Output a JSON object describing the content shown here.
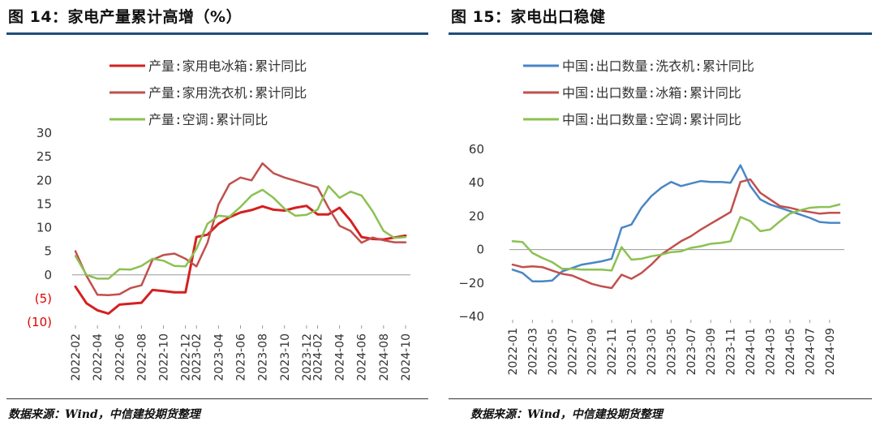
{
  "left": {
    "title": "图 14：家电产量累计高增（%）",
    "source": "数据来源：Wind，中信建投期货整理"
  },
  "right": {
    "title": "图 15：家电出口稳健",
    "source": "数据来源：Wind，中信建投期货整理"
  },
  "colors": {
    "rule": "#1f4e79",
    "dark_red": "#d42020",
    "light_red": "#c0504d",
    "green": "#8cc152",
    "blue": "#4a86c5",
    "negative_tick": "#e00000"
  },
  "chart_data": [
    {
      "type": "line",
      "ylim": [
        -10,
        30
      ],
      "yticks": [
        30,
        25,
        20,
        15,
        10,
        5,
        0,
        -5,
        -10
      ],
      "ytick_labels": [
        "30",
        "25",
        "20",
        "15",
        "10",
        "5",
        "0",
        "(5)",
        "(10)"
      ],
      "xtick_labels": [
        "2022-02",
        "2022-04",
        "2022-06",
        "2022-08",
        "2022-10",
        "2022-12",
        "2023-02",
        "2023-04",
        "2023-06",
        "2023-08",
        "2023-10",
        "2023-12",
        "2024-02",
        "2024-04",
        "2024-06",
        "2024-08",
        "2024-10"
      ],
      "x": [
        "2022-02",
        "2022-03",
        "2022-04",
        "2022-05",
        "2022-06",
        "2022-07",
        "2022-08",
        "2022-09",
        "2022-10",
        "2022-11",
        "2022-12",
        "2023-02",
        "2023-03",
        "2023-04",
        "2023-05",
        "2023-06",
        "2023-07",
        "2023-08",
        "2023-09",
        "2023-10",
        "2023-11",
        "2023-12",
        "2024-02",
        "2024-03",
        "2024-04",
        "2024-05",
        "2024-06",
        "2024-07",
        "2024-08",
        "2024-09",
        "2024-10"
      ],
      "legend_position": "top",
      "series": [
        {
          "name": "产量:家用电冰箱:累计同比",
          "color": "#d42020",
          "width": 3,
          "values": [
            -2.5,
            -6.0,
            -7.5,
            -8.2,
            -6.3,
            -6.1,
            -5.9,
            -3.2,
            -3.4,
            -3.7,
            -3.7,
            8.0,
            8.5,
            10.8,
            12.2,
            13.2,
            13.7,
            14.5,
            13.8,
            13.6,
            14.2,
            14.6,
            12.8,
            12.8,
            14.2,
            11.5,
            8.0,
            7.6,
            7.5,
            7.9,
            8.3
          ]
        },
        {
          "name": "产量:家用洗衣机:累计同比",
          "color": "#c0504d",
          "width": 2.5,
          "values": [
            5.0,
            -0.2,
            -4.2,
            -4.3,
            -4.1,
            -2.8,
            -2.2,
            3.2,
            4.2,
            4.5,
            3.4,
            1.8,
            6.8,
            14.9,
            19.2,
            20.6,
            20.0,
            23.6,
            21.5,
            20.6,
            19.9,
            19.2,
            18.5,
            14.2,
            10.4,
            9.3,
            6.8,
            7.9,
            7.3,
            6.9,
            6.9
          ]
        },
        {
          "name": "产量:空调:累计同比",
          "color": "#8cc152",
          "width": 2.5,
          "values": [
            4.0,
            0.0,
            -0.8,
            -0.8,
            1.2,
            1.1,
            1.9,
            3.4,
            3.0,
            1.9,
            1.8,
            5.5,
            10.8,
            12.5,
            12.3,
            14.4,
            16.8,
            18.0,
            16.3,
            14.0,
            12.5,
            12.7,
            13.8,
            18.8,
            16.3,
            17.6,
            16.8,
            13.5,
            9.3,
            7.8,
            8.0
          ]
        }
      ]
    },
    {
      "type": "line",
      "ylim": [
        -40,
        60
      ],
      "yticks": [
        60,
        40,
        20,
        0,
        -20,
        -40
      ],
      "ytick_labels": [
        "60",
        "40",
        "20",
        "0",
        "−20",
        "−40"
      ],
      "xtick_labels": [
        "2022-01",
        "2022-03",
        "2022-05",
        "2022-07",
        "2022-09",
        "2022-11",
        "2023-01",
        "2023-03",
        "2023-05",
        "2023-07",
        "2023-09",
        "2023-11",
        "2024-01",
        "2024-03",
        "2024-05",
        "2024-07",
        "2024-09"
      ],
      "x": [
        "2022-01",
        "2022-02",
        "2022-03",
        "2022-04",
        "2022-05",
        "2022-06",
        "2022-07",
        "2022-08",
        "2022-09",
        "2022-10",
        "2022-11",
        "2022-12",
        "2023-01",
        "2023-02",
        "2023-03",
        "2023-04",
        "2023-05",
        "2023-06",
        "2023-07",
        "2023-08",
        "2023-09",
        "2023-10",
        "2023-11",
        "2023-12",
        "2024-01",
        "2024-02",
        "2024-03",
        "2024-04",
        "2024-05",
        "2024-06",
        "2024-07",
        "2024-08",
        "2024-09",
        "2024-10"
      ],
      "legend_position": "top",
      "series": [
        {
          "name": "中国:出口数量:洗衣机:累计同比",
          "color": "#4a86c5",
          "width": 2.5,
          "values": [
            -12,
            -14,
            -19,
            -19,
            -18.5,
            -13,
            -11,
            -9,
            -8,
            -7,
            -5.5,
            13,
            15,
            25,
            32,
            37,
            40.5,
            38,
            39.5,
            41,
            40.5,
            40.5,
            40,
            50.5,
            38,
            30,
            27,
            25,
            23,
            21,
            19,
            16.5,
            16,
            16
          ]
        },
        {
          "name": "中国:出口数量:冰箱:累计同比",
          "color": "#c0504d",
          "width": 2.5,
          "values": [
            -9,
            -10.5,
            -10,
            -10.5,
            -12.5,
            -14.5,
            -15.5,
            -18,
            -20.5,
            -22,
            -23,
            -15,
            -17.5,
            -14,
            -9,
            -3,
            1,
            5,
            8,
            12,
            15.5,
            19,
            22.5,
            40.5,
            42,
            34,
            30,
            26,
            25,
            23.5,
            22.5,
            21.5,
            22,
            22
          ]
        },
        {
          "name": "中国:出口数量:空调:累计同比",
          "color": "#8cc152",
          "width": 2.5,
          "values": [
            5,
            4.5,
            -2,
            -5,
            -7.5,
            -11.5,
            -11.5,
            -12,
            -12,
            -12,
            -12.5,
            1.5,
            -6,
            -5.5,
            -4,
            -3,
            -1.5,
            -1,
            1,
            2,
            3.5,
            4,
            5,
            19.5,
            17,
            11,
            12,
            17,
            21.5,
            23.5,
            25,
            25.5,
            25.5,
            27
          ]
        }
      ]
    }
  ]
}
